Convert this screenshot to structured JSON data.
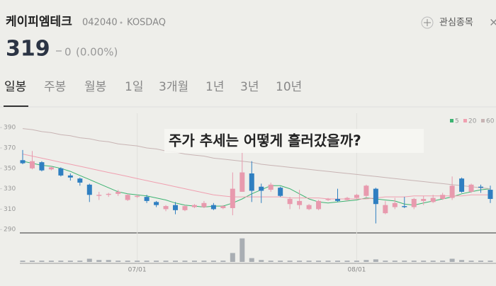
{
  "header": {
    "name": "케이피엠테크",
    "code": "042040",
    "market": "KOSDAQ",
    "watchlist": "관심종목",
    "price": "319",
    "change": "0",
    "change_pct": "(0.00%)"
  },
  "tabs": [
    "일봉",
    "주봉",
    "월봉",
    "1일",
    "3개월",
    "1년",
    "3년",
    "10년"
  ],
  "caption": "주가 추세는 어떻게 흘러갔을까?",
  "chart_data": {
    "type": "candlestick",
    "categories": [
      null,
      null,
      null,
      null,
      null,
      null,
      null,
      null,
      null,
      null,
      null,
      null,
      "07/01",
      null,
      null,
      null,
      null,
      null,
      null,
      null,
      null,
      null,
      null,
      null,
      null,
      null,
      null,
      null,
      null,
      null,
      null,
      null,
      null,
      null,
      null,
      "08/01",
      null,
      null,
      null,
      null,
      null,
      null,
      null,
      null,
      null,
      null,
      null,
      null,
      null,
      null
    ],
    "open": [
      358,
      350,
      356,
      349,
      350,
      343,
      340,
      334,
      323,
      324,
      325,
      319,
      322,
      322,
      317,
      310,
      314,
      309,
      312,
      312,
      314,
      311,
      311,
      327,
      345,
      332,
      329,
      331,
      315,
      314,
      310,
      310,
      319,
      320,
      319,
      321,
      323,
      330,
      306,
      312,
      313,
      312,
      318,
      317,
      320,
      321,
      340,
      327,
      332,
      329
    ],
    "high": [
      368,
      367,
      357,
      352,
      351,
      345,
      341,
      335,
      327,
      326,
      329,
      325,
      324,
      324,
      318,
      314,
      317,
      314,
      315,
      318,
      316,
      314,
      346,
      369,
      357,
      335,
      336,
      332,
      322,
      329,
      315,
      319,
      321,
      330,
      322,
      325,
      334,
      331,
      318,
      321,
      322,
      321,
      323,
      324,
      326,
      342,
      341,
      335,
      334,
      333
    ],
    "low": [
      354,
      349,
      347,
      348,
      342,
      338,
      333,
      317,
      319,
      322,
      323,
      318,
      321,
      316,
      312,
      308,
      305,
      308,
      311,
      311,
      309,
      310,
      304,
      327,
      317,
      316,
      327,
      322,
      310,
      310,
      309,
      309,
      318,
      317,
      318,
      320,
      321,
      296,
      305,
      310,
      311,
      310,
      314,
      316,
      319,
      319,
      326,
      326,
      326,
      316
    ],
    "close": [
      355,
      357,
      348,
      351,
      343,
      341,
      336,
      324,
      324,
      325,
      327,
      324,
      323,
      318,
      314,
      313,
      309,
      313,
      314,
      316,
      310,
      313,
      330,
      346,
      328,
      328,
      334,
      323,
      320,
      318,
      314,
      318,
      320,
      318,
      321,
      324,
      333,
      315,
      314,
      316,
      312,
      320,
      320,
      321,
      324,
      333,
      327,
      334,
      331,
      320
    ],
    "up_color": "#e89aae",
    "down_color": "#2f7fc1",
    "series": [
      {
        "name": "5",
        "color": "#3cb371",
        "values": [
          357,
          355,
          353,
          352,
          350,
          347,
          343,
          339,
          335,
          331,
          327,
          325,
          324,
          323,
          321,
          319,
          316,
          314,
          313,
          312,
          313,
          313,
          316,
          320,
          325,
          329,
          333,
          333,
          330,
          325,
          320,
          317,
          316,
          317,
          318,
          319,
          321,
          320,
          319,
          318,
          315,
          314,
          316,
          318,
          320,
          322,
          325,
          327,
          329,
          330
        ]
      },
      {
        "name": "20",
        "color": "#f0a0b0",
        "values": [
          364,
          362,
          360,
          358,
          356,
          354,
          352,
          350,
          348,
          346,
          344,
          342,
          340,
          338,
          336,
          334,
          332,
          330,
          328,
          326,
          324,
          323,
          322,
          322,
          322,
          322,
          322,
          322,
          321,
          321,
          321,
          321,
          320,
          320,
          320,
          320,
          320,
          321,
          322,
          322,
          322,
          323,
          323,
          323,
          323,
          323,
          323,
          324,
          324,
          324
        ]
      },
      {
        "name": "60",
        "color": "#c8b4b4",
        "values": [
          389,
          388,
          386,
          385,
          383,
          382,
          380,
          379,
          377,
          376,
          374,
          373,
          372,
          370,
          369,
          367,
          366,
          364,
          363,
          362,
          360,
          359,
          358,
          357,
          356,
          354,
          353,
          352,
          351,
          350,
          349,
          348,
          347,
          346,
          345,
          344,
          343,
          342,
          341,
          340,
          339,
          338,
          337,
          336,
          335,
          334,
          333,
          332,
          331,
          330
        ]
      }
    ],
    "volume": [
      2,
      2,
      2,
      2,
      2,
      2,
      2,
      5,
      3,
      3,
      2,
      2,
      2,
      2,
      2,
      2,
      2,
      2,
      2,
      2,
      2,
      2,
      14,
      37,
      6,
      3,
      2,
      2,
      2,
      2,
      2,
      2,
      2,
      2,
      2,
      2,
      3,
      4,
      2,
      2,
      2,
      2,
      2,
      2,
      2,
      5,
      3,
      2,
      2,
      2
    ],
    "volume_color": "#a9aeb3",
    "volume_lim": [
      0,
      40
    ],
    "ylim": [
      286,
      404
    ],
    "yticks": [
      390,
      370,
      350,
      330,
      310,
      290
    ]
  }
}
